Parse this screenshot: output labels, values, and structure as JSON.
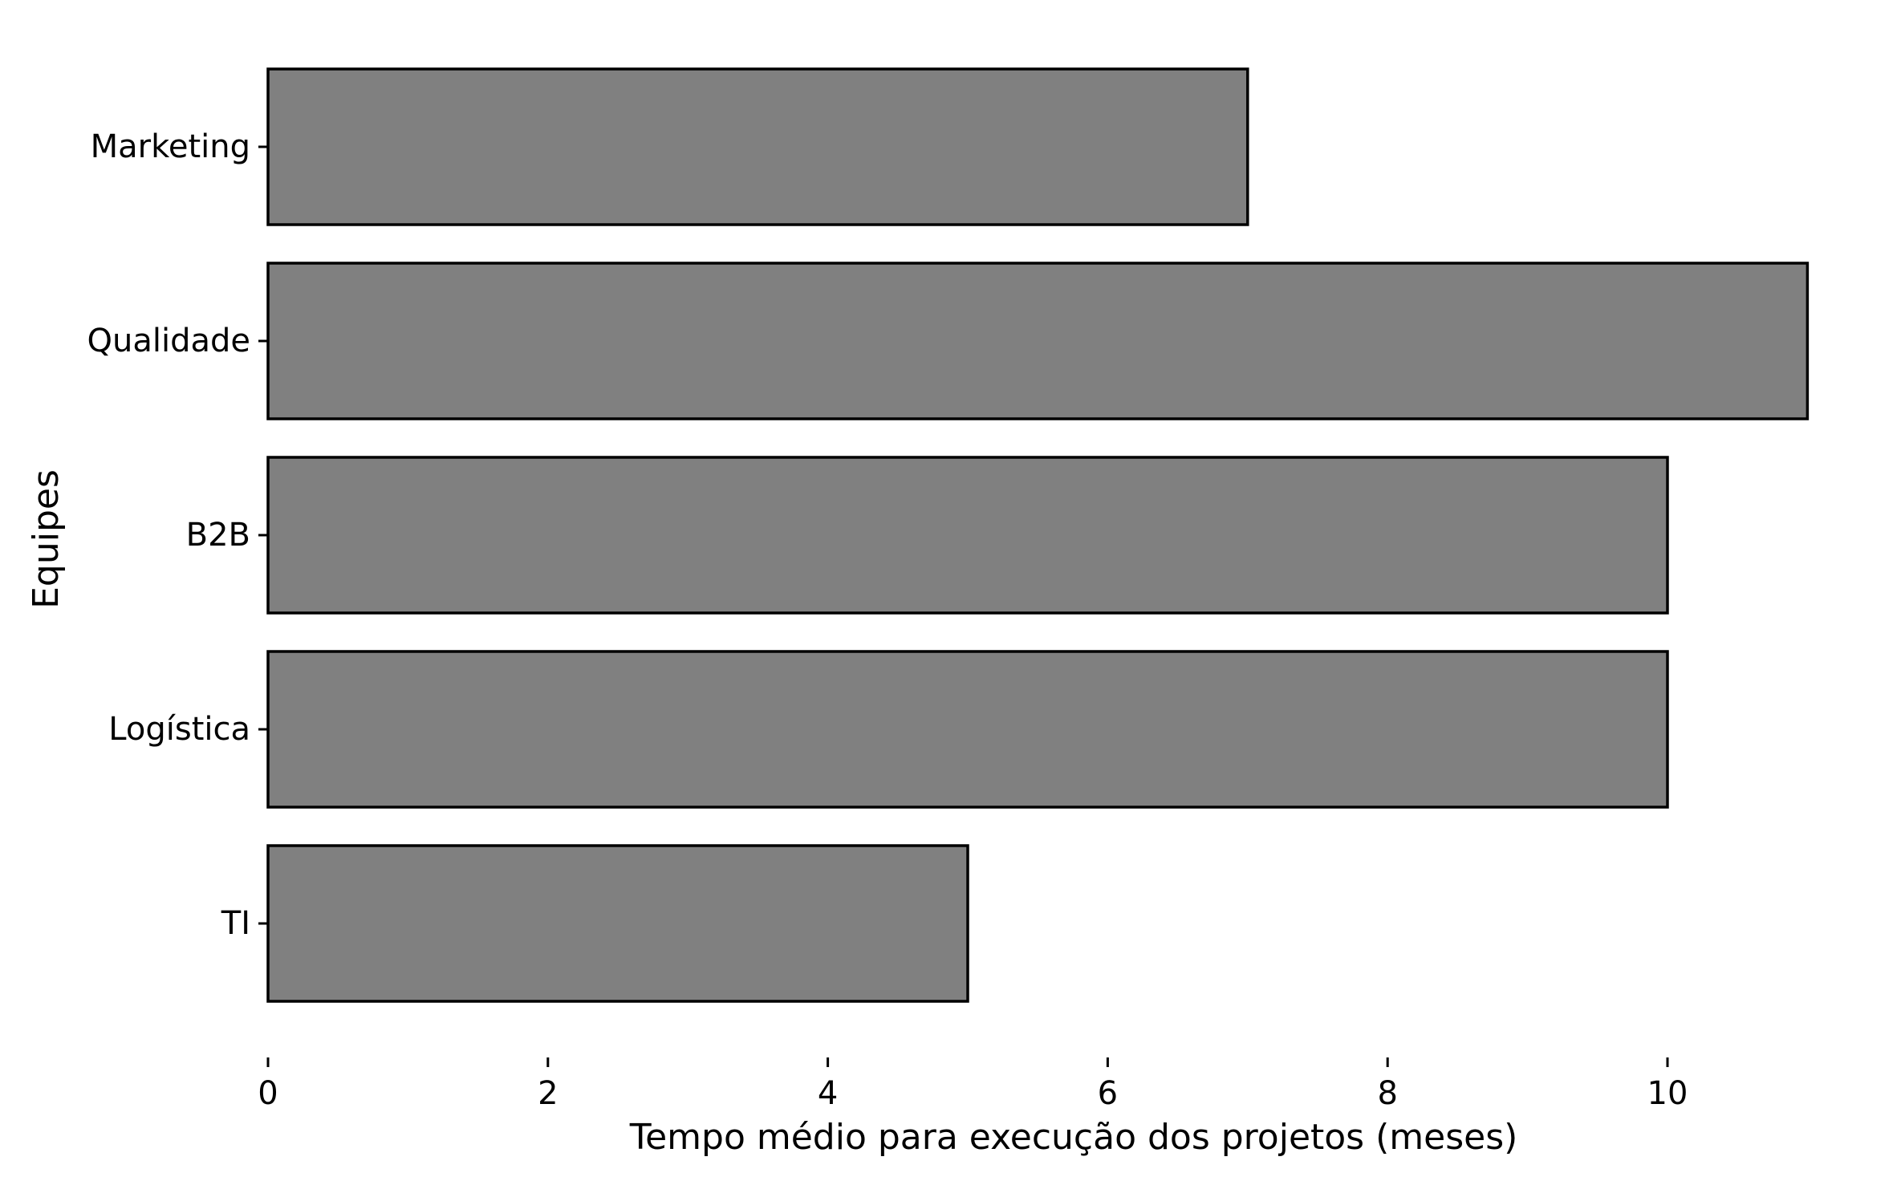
{
  "chart_data": {
    "type": "bar",
    "orientation": "horizontal",
    "categories": [
      "Marketing",
      "Qualidade",
      "B2B",
      "Logística",
      "TI"
    ],
    "values": [
      7,
      11,
      10,
      10,
      5
    ],
    "xlabel": "Tempo médio para execução dos projetos (meses)",
    "ylabel": "Equipes",
    "xlim": [
      0,
      11
    ],
    "xticks": [
      0,
      2,
      4,
      6,
      8,
      10
    ],
    "grid": false,
    "bar_color": "#808080",
    "edge_color": "#000000"
  }
}
